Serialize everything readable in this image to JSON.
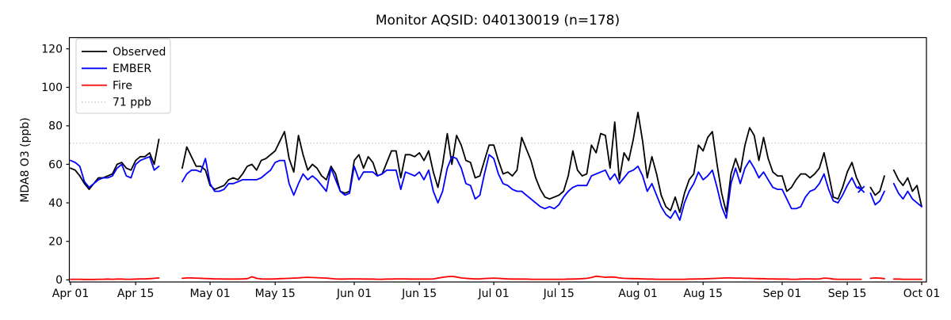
{
  "title": "Monitor AQSID: 040130019 (n=178)",
  "chart_data": {
    "type": "line",
    "title": "Monitor AQSID: 040130019 (n=178)",
    "xlabel": "",
    "ylabel": "MDA8 O3 (ppb)",
    "ylim": [
      -2,
      126
    ],
    "yticks": [
      0,
      20,
      40,
      60,
      80,
      100,
      120
    ],
    "x_resolution": "daily",
    "x_range": "Apr 01 - Oct 01",
    "xtick_labels": [
      "Apr 01",
      "Apr 15",
      "May 01",
      "May 15",
      "Jun 01",
      "Jun 15",
      "Jul 01",
      "Jul 15",
      "Aug 01",
      "Aug 15",
      "Sep 01",
      "Sep 15",
      "Oct 01"
    ],
    "xtick_days": [
      0,
      14,
      30,
      44,
      61,
      75,
      91,
      105,
      122,
      136,
      153,
      167,
      183
    ],
    "grid": false,
    "legend_position": "upper-left",
    "threshold": {
      "value": 71,
      "label": "71 ppb",
      "color": "#d3d3d3",
      "style": "dotted"
    },
    "missing_dates": [
      "Apr 21",
      "Apr 22",
      "Apr 23",
      "Apr 24",
      "Sep 19",
      "Sep 24"
    ],
    "marker": {
      "series": "EMBER",
      "day": 170,
      "date": "Sep 18",
      "shape": "x",
      "color": "#0000ff"
    },
    "legend": [
      {
        "label": "Observed",
        "color": "#000000",
        "style": "solid"
      },
      {
        "label": "EMBER",
        "color": "#0000ff",
        "style": "solid"
      },
      {
        "label": "Fire",
        "color": "#ff0000",
        "style": "solid"
      },
      {
        "label": "71 ppb",
        "color": "#d3d3d3",
        "style": "dotted"
      }
    ],
    "series": [
      {
        "name": "Observed",
        "color": "#000000",
        "values": [
          58,
          57,
          54,
          50,
          47,
          50,
          53,
          53,
          54,
          55,
          60,
          61,
          58,
          57,
          62,
          64,
          64,
          66,
          60,
          73,
          null,
          null,
          null,
          null,
          58,
          69,
          64,
          59,
          59,
          57,
          49,
          47,
          48,
          49,
          52,
          53,
          52,
          55,
          59,
          60,
          57,
          62,
          63,
          65,
          67,
          72,
          77,
          63,
          56,
          75,
          65,
          57,
          60,
          58,
          54,
          52,
          59,
          55,
          46,
          45,
          46,
          62,
          65,
          58,
          64,
          61,
          54,
          55,
          61,
          67,
          67,
          53,
          65,
          65,
          64,
          66,
          62,
          67,
          56,
          48,
          60,
          76,
          60,
          75,
          70,
          62,
          61,
          53,
          54,
          62,
          70,
          70,
          62,
          55,
          56,
          54,
          57,
          74,
          68,
          62,
          53,
          47,
          43,
          42,
          43,
          44,
          46,
          54,
          67,
          57,
          54,
          55,
          70,
          66,
          76,
          75,
          58,
          82,
          52,
          66,
          62,
          73,
          87,
          72,
          53,
          64,
          55,
          44,
          38,
          36,
          43,
          35,
          45,
          52,
          55,
          70,
          67,
          74,
          77,
          60,
          45,
          35,
          55,
          63,
          56,
          70,
          79,
          75,
          62,
          74,
          63,
          56,
          54,
          54,
          46,
          48,
          52,
          55,
          55,
          53,
          55,
          58,
          66,
          55,
          43,
          42,
          48,
          56,
          61,
          53,
          48,
          null,
          48,
          44,
          46,
          54,
          null,
          57,
          52,
          49,
          53,
          46,
          49,
          38
        ]
      },
      {
        "name": "EMBER",
        "color": "#0000ff",
        "values": [
          62,
          61,
          59,
          51,
          48,
          50,
          52,
          53,
          53,
          54,
          58,
          60,
          54,
          53,
          60,
          62,
          63,
          64,
          57,
          59,
          null,
          null,
          null,
          null,
          51,
          55,
          57,
          57,
          56,
          63,
          50,
          46,
          46,
          47,
          50,
          50,
          51,
          52,
          52,
          52,
          52,
          53,
          55,
          57,
          61,
          62,
          62,
          50,
          44,
          50,
          55,
          52,
          54,
          52,
          49,
          46,
          58,
          52,
          46,
          44,
          45,
          59,
          52,
          56,
          56,
          56,
          54,
          55,
          57,
          57,
          57,
          47,
          56,
          55,
          54,
          56,
          52,
          57,
          46,
          40,
          46,
          58,
          64,
          63,
          58,
          50,
          49,
          42,
          44,
          55,
          65,
          63,
          55,
          50,
          49,
          47,
          46,
          46,
          44,
          42,
          40,
          38,
          37,
          38,
          37,
          39,
          43,
          46,
          48,
          49,
          49,
          49,
          54,
          55,
          56,
          57,
          52,
          55,
          50,
          53,
          56,
          57,
          59,
          54,
          46,
          50,
          44,
          38,
          34,
          32,
          36,
          31,
          40,
          46,
          50,
          56,
          52,
          54,
          57,
          48,
          38,
          32,
          50,
          58,
          50,
          58,
          62,
          58,
          53,
          56,
          52,
          48,
          47,
          47,
          42,
          37,
          37,
          38,
          43,
          46,
          47,
          50,
          55,
          47,
          41,
          40,
          44,
          49,
          53,
          48,
          47,
          null,
          45,
          39,
          41,
          46,
          null,
          50,
          45,
          42,
          46,
          42,
          40,
          38
        ]
      },
      {
        "name": "Fire",
        "color": "#ff0000",
        "values": [
          0.3,
          0.3,
          0.3,
          0.2,
          0.2,
          0.2,
          0.3,
          0.3,
          0.4,
          0.3,
          0.4,
          0.4,
          0.3,
          0.3,
          0.4,
          0.5,
          0.5,
          0.6,
          0.8,
          1.0,
          null,
          null,
          null,
          null,
          0.8,
          1.0,
          1.0,
          0.9,
          0.8,
          0.7,
          0.6,
          0.5,
          0.5,
          0.4,
          0.4,
          0.4,
          0.4,
          0.5,
          0.6,
          1.6,
          0.8,
          0.5,
          0.4,
          0.4,
          0.5,
          0.6,
          0.7,
          0.8,
          0.9,
          1.0,
          1.2,
          1.3,
          1.2,
          1.1,
          1.0,
          0.9,
          0.7,
          0.5,
          0.4,
          0.4,
          0.5,
          0.5,
          0.5,
          0.4,
          0.4,
          0.4,
          0.3,
          0.3,
          0.4,
          0.4,
          0.5,
          0.5,
          0.5,
          0.4,
          0.4,
          0.4,
          0.4,
          0.4,
          0.5,
          0.9,
          1.3,
          1.6,
          1.8,
          1.5,
          1.0,
          0.8,
          0.6,
          0.5,
          0.5,
          0.7,
          0.8,
          0.9,
          0.8,
          0.6,
          0.5,
          0.4,
          0.4,
          0.4,
          0.4,
          0.3,
          0.3,
          0.3,
          0.3,
          0.3,
          0.3,
          0.3,
          0.3,
          0.4,
          0.4,
          0.5,
          0.6,
          0.8,
          1.2,
          1.9,
          1.6,
          1.3,
          1.5,
          1.4,
          1.0,
          0.8,
          0.7,
          0.6,
          0.6,
          0.5,
          0.4,
          0.4,
          0.3,
          0.3,
          0.3,
          0.3,
          0.3,
          0.3,
          0.3,
          0.4,
          0.4,
          0.5,
          0.5,
          0.6,
          0.7,
          0.8,
          0.9,
          1.0,
          1.0,
          0.9,
          0.9,
          0.8,
          0.8,
          0.7,
          0.6,
          0.6,
          0.5,
          0.5,
          0.4,
          0.4,
          0.4,
          0.3,
          0.3,
          0.4,
          0.5,
          0.5,
          0.4,
          0.5,
          0.9,
          0.8,
          0.4,
          0.3,
          0.3,
          0.3,
          0.3,
          0.3,
          0.3,
          null,
          0.8,
          1.0,
          0.9,
          0.6,
          null,
          0.4,
          0.4,
          0.3,
          0.3,
          0.3,
          0.3,
          0.3
        ]
      }
    ]
  }
}
